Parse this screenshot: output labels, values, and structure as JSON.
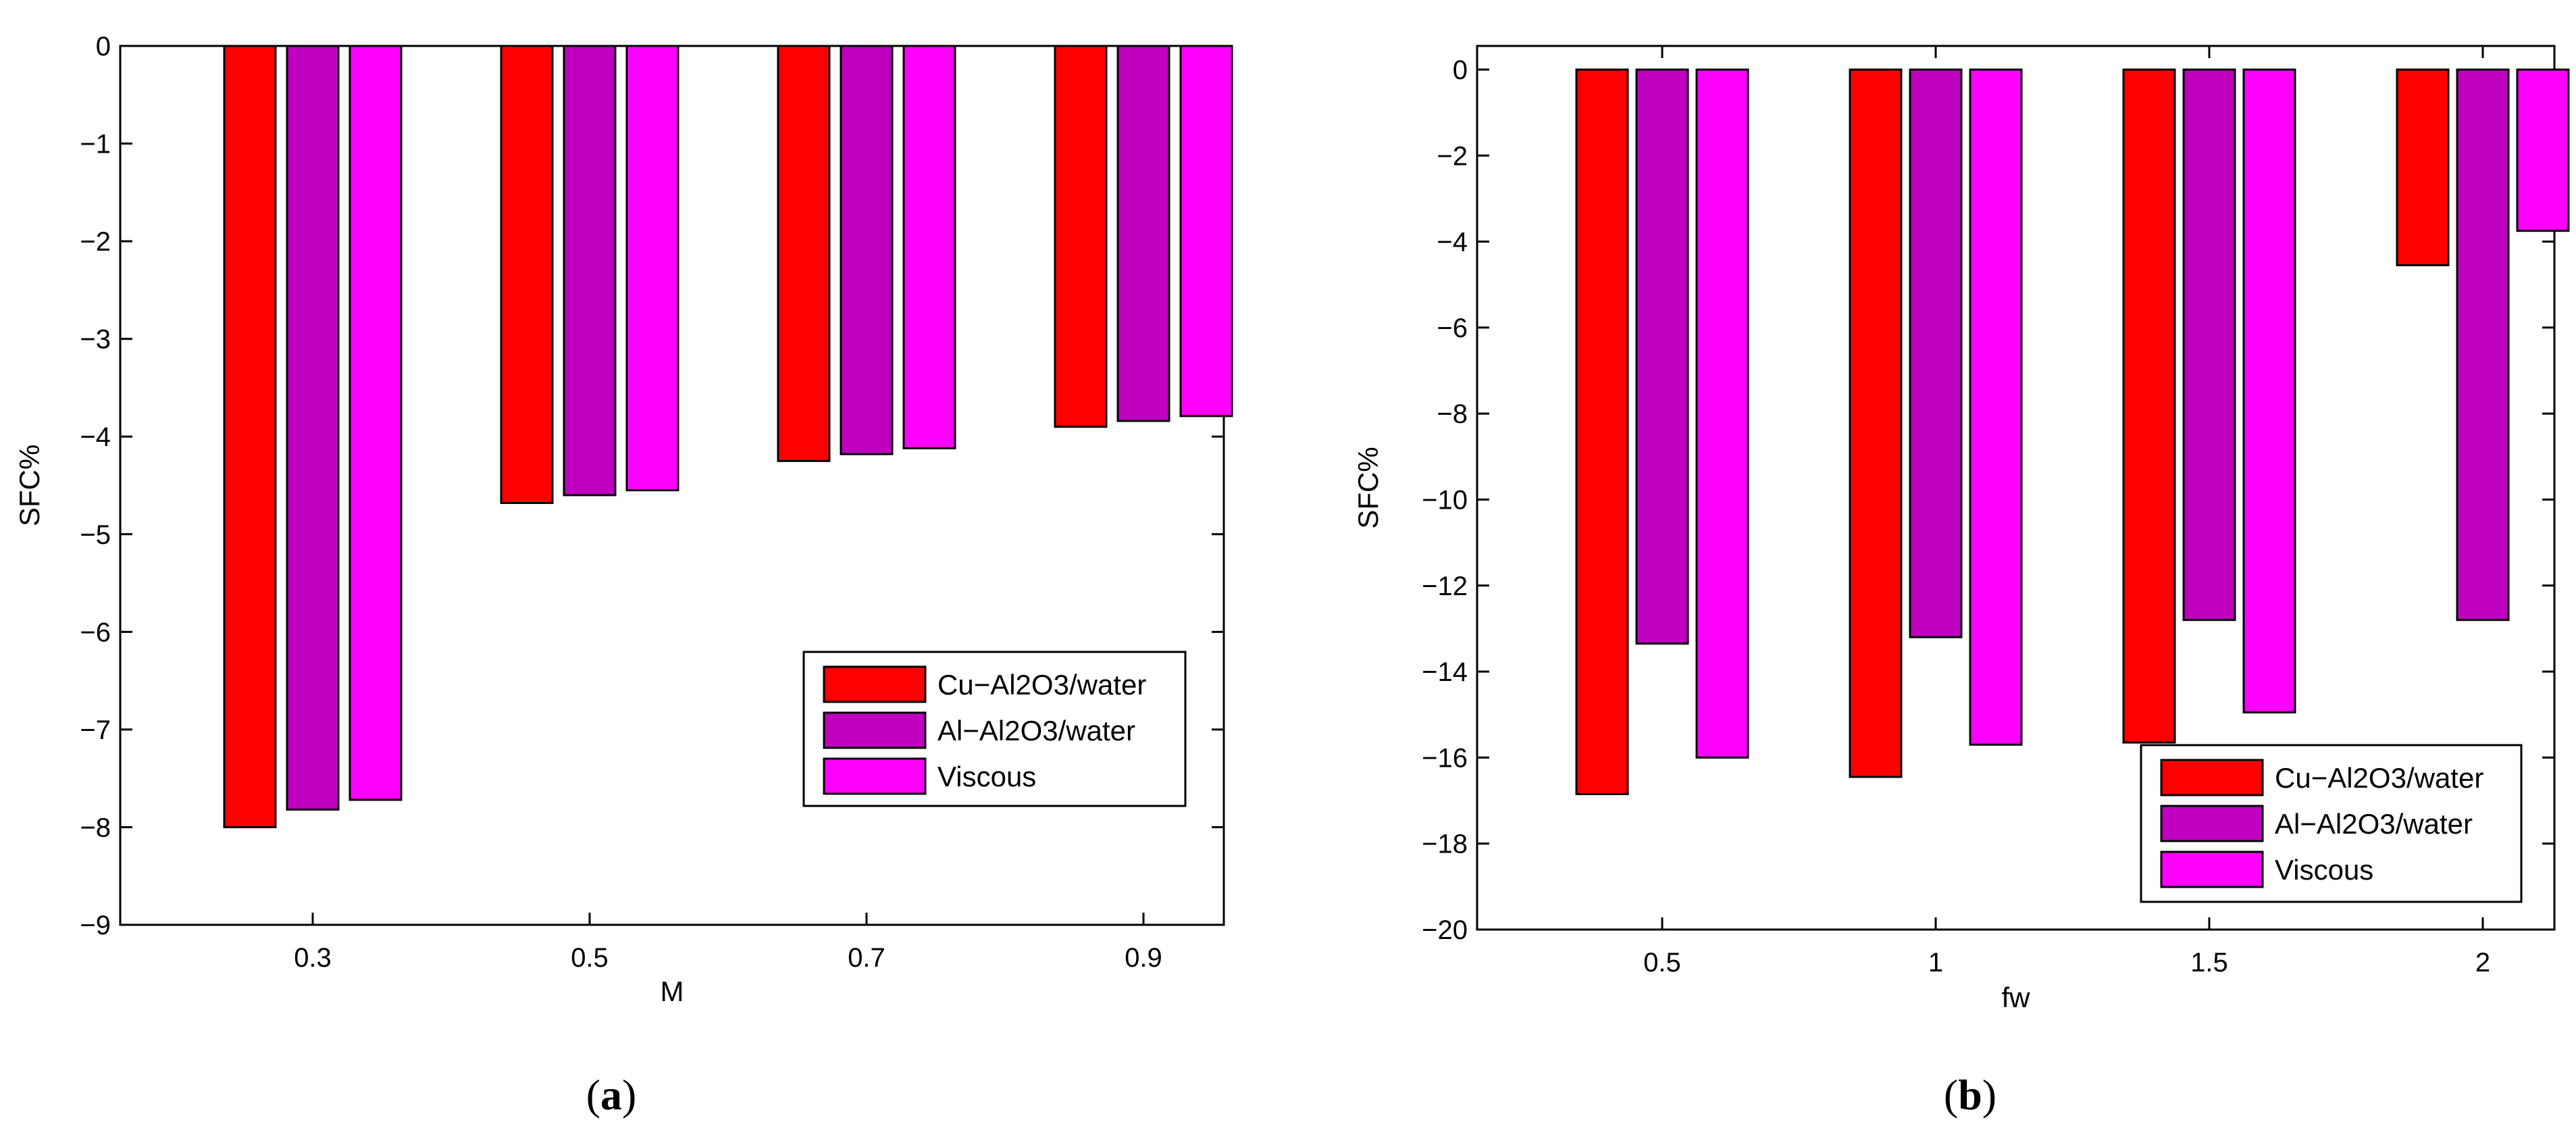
{
  "chart_data": [
    {
      "type": "bar",
      "caption": "a",
      "xlabel": "M",
      "ylabel": "SFC%",
      "categories": [
        "0.3",
        "0.5",
        "0.7",
        "0.9"
      ],
      "ylim": [
        -9,
        0
      ],
      "yticks": [
        "0",
        "−1",
        "−2",
        "−3",
        "−4",
        "−5",
        "−6",
        "−7",
        "−8",
        "−9"
      ],
      "legend_position": "lower-right",
      "series": [
        {
          "name": "Cu−Al2O3/water",
          "color": "#ff0000",
          "values": [
            -8.0,
            -4.68,
            -4.25,
            -3.9
          ]
        },
        {
          "name": "Al−Al2O3/water",
          "color": "#bf00bf",
          "values": [
            -7.82,
            -4.6,
            -4.18,
            -3.84
          ]
        },
        {
          "name": "Viscous",
          "color": "#ff00ff",
          "values": [
            -7.72,
            -4.55,
            -4.12,
            -3.79
          ]
        }
      ]
    },
    {
      "type": "bar",
      "caption": "b",
      "xlabel": "fw",
      "ylabel": "SFC%",
      "categories": [
        "0.5",
        "1",
        "1.5",
        "2"
      ],
      "ylim": [
        -20,
        0
      ],
      "yticks": [
        "0",
        "−2",
        "−4",
        "−6",
        "−8",
        "−10",
        "−12",
        "−14",
        "−16",
        "−18",
        "−20"
      ],
      "legend_position": "lower-right",
      "series": [
        {
          "name": "Cu−Al2O3/water",
          "color": "#ff0000",
          "values": [
            -16.85,
            -16.45,
            -15.65,
            -4.55
          ]
        },
        {
          "name": "Al−Al2O3/water",
          "color": "#bf00bf",
          "values": [
            -13.35,
            -13.2,
            -12.8,
            -12.8
          ]
        },
        {
          "name": "Viscous",
          "color": "#ff00ff",
          "values": [
            -16.0,
            -15.7,
            -14.95,
            -3.75
          ]
        }
      ]
    }
  ]
}
